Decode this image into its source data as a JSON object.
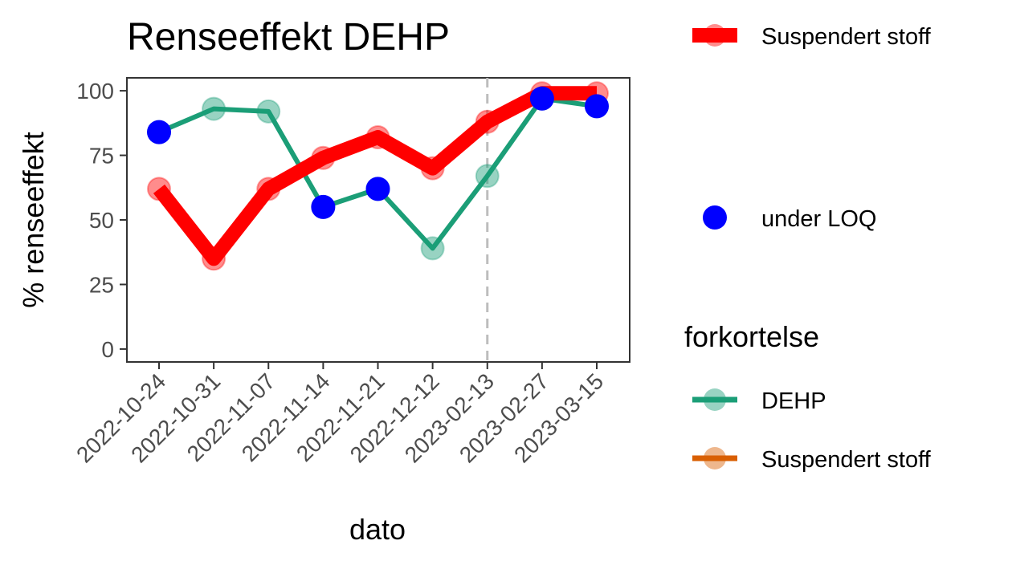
{
  "chart_data": {
    "type": "line",
    "title": "Renseeffekt DEHP",
    "xlabel": "dato",
    "ylabel": "% renseeffekt",
    "ylim": [
      -5,
      105
    ],
    "yticks": [
      0,
      25,
      50,
      75,
      100
    ],
    "categories": [
      "2022-10-24",
      "2022-10-31",
      "2022-11-07",
      "2022-11-14",
      "2022-11-21",
      "2022-12-12",
      "2023-02-13",
      "2023-02-27",
      "2023-03-15"
    ],
    "vline_category": "2023-02-13",
    "grid": false,
    "series": [
      {
        "name": "Suspendert stoff",
        "color": "#ff0000",
        "values": [
          62,
          35,
          62,
          74,
          82,
          70,
          88,
          99,
          99
        ]
      },
      {
        "name": "DEHP",
        "color": "#1b9e77",
        "values": [
          84,
          93,
          92,
          55,
          62,
          39,
          67,
          97,
          94
        ]
      }
    ],
    "under_loq": [
      {
        "category": "2022-10-24",
        "value": 84
      },
      {
        "category": "2022-11-14",
        "value": 55
      },
      {
        "category": "2022-11-21",
        "value": 62
      },
      {
        "category": "2023-02-27",
        "value": 97
      },
      {
        "category": "2023-03-15",
        "value": 94
      }
    ],
    "legend": {
      "placement": "right",
      "top_entry": {
        "label": "Suspendert stoff",
        "color": "#ff0000"
      },
      "loq_entry": {
        "label": "under LOQ",
        "color": "#0000ff"
      },
      "group_title": "forkortelse",
      "group_items": [
        {
          "label": "DEHP",
          "color": "#1b9e77"
        },
        {
          "label": "Suspendert stoff",
          "color": "#d95f02"
        }
      ]
    }
  }
}
